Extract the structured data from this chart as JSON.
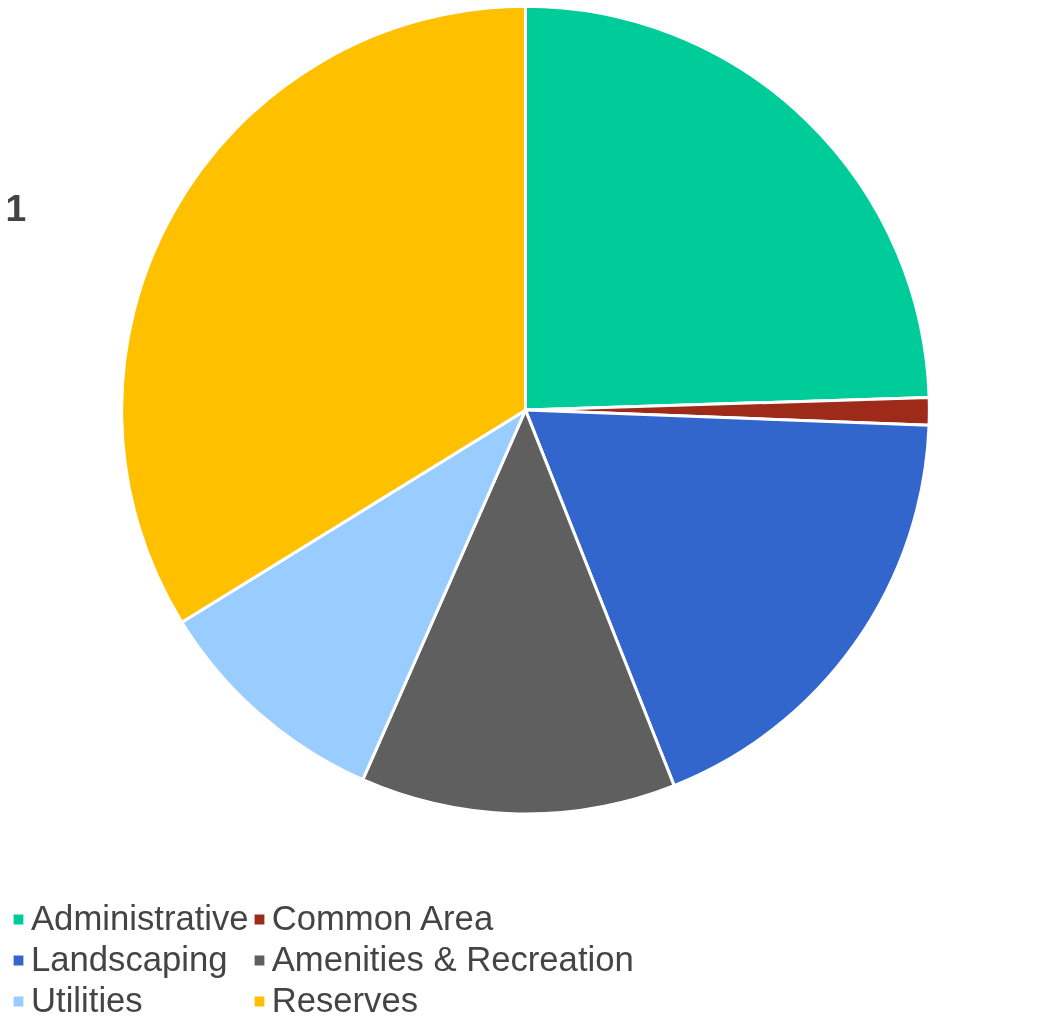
{
  "chart_data": {
    "type": "pie",
    "categories": [
      "Administrative",
      "Common Area",
      "Landscaping",
      "Amenities & Recreation",
      "Utilities",
      "Reserves"
    ],
    "values": [
      24.5,
      1.1,
      18.4,
      12.6,
      9.6,
      33.8
    ],
    "colors": [
      "#00cc99",
      "#9e2a1a",
      "#3366cc",
      "#5f5f5f",
      "#99ccff",
      "#ffc000"
    ],
    "legend": "bottom",
    "annotations": [
      "1"
    ]
  }
}
